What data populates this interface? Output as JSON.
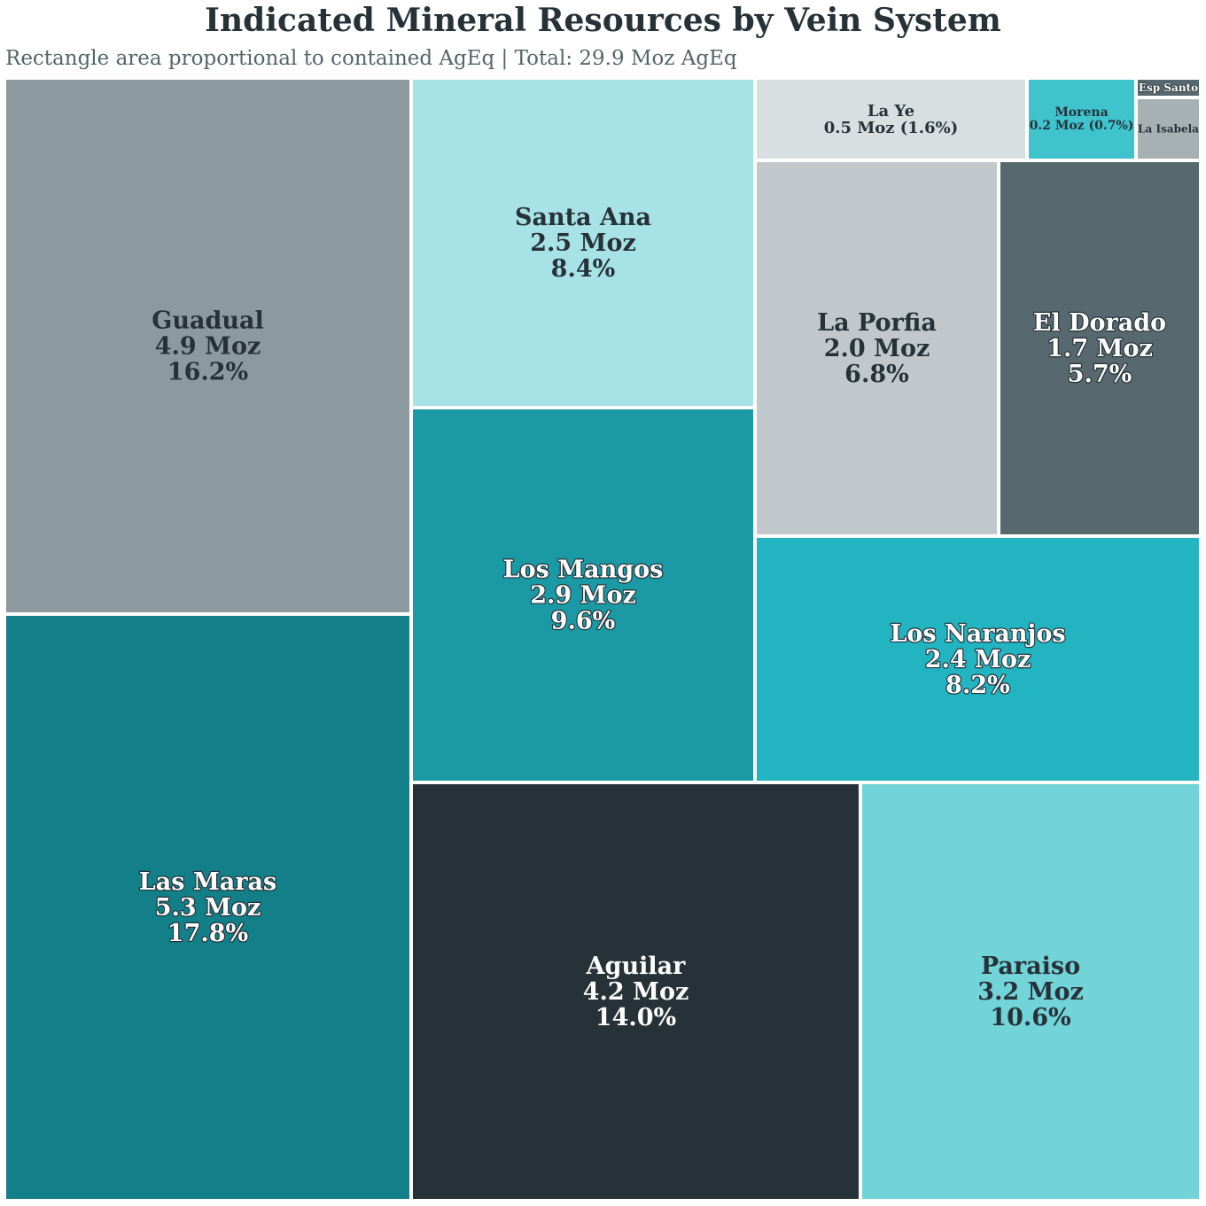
{
  "title": "Indicated Mineral Resources by Vein System",
  "subtitle": "Rectangle area proportional to contained AgEq | Total: 29.9 Moz AgEq",
  "chart_data": {
    "type": "treemap",
    "title": "Indicated Mineral Resources by Vein System",
    "subtitle": "Rectangle area proportional to contained AgEq | Total: 29.9 Moz AgEq",
    "unit": "Moz AgEq",
    "total": 29.9,
    "items": [
      {
        "name": "Las Maras",
        "value": 5.3,
        "percent": 17.8,
        "color": "#137f89",
        "text_color": "#ffffff",
        "label_lines": [
          "Las Maras",
          "5.3 Moz",
          "17.8%"
        ]
      },
      {
        "name": "Guadual",
        "value": 4.9,
        "percent": 16.2,
        "color": "#8c999e",
        "text_color": "#263238",
        "label_lines": [
          "Guadual",
          "4.9 Moz",
          "16.2%"
        ]
      },
      {
        "name": "Aguilar",
        "value": 4.2,
        "percent": 14.0,
        "color": "#263238",
        "text_color": "#ffffff",
        "label_lines": [
          "Aguilar",
          "4.2 Moz",
          "14.0%"
        ]
      },
      {
        "name": "Paraiso",
        "value": 3.2,
        "percent": 10.6,
        "color": "#72d3d9",
        "text_color": "#263238",
        "label_lines": [
          "Paraiso",
          "3.2 Moz",
          "10.6%"
        ]
      },
      {
        "name": "Los Mangos",
        "value": 2.9,
        "percent": 9.6,
        "color": "#1b9aa6",
        "text_color": "#ffffff",
        "label_lines": [
          "Los Mangos",
          "2.9 Moz",
          "9.6%"
        ]
      },
      {
        "name": "Santa Ana",
        "value": 2.5,
        "percent": 8.4,
        "color": "#a7e2e6",
        "text_color": "#263238",
        "label_lines": [
          "Santa Ana",
          "2.5 Moz",
          "8.4%"
        ]
      },
      {
        "name": "Los Naranjos",
        "value": 2.4,
        "percent": 8.2,
        "color": "#23b4c2",
        "text_color": "#ffffff",
        "label_lines": [
          "Los Naranjos",
          "2.4 Moz",
          "8.2%"
        ]
      },
      {
        "name": "La Porfia",
        "value": 2.0,
        "percent": 6.8,
        "color": "#c0c8cb",
        "text_color": "#263238",
        "label_lines": [
          "La Porfia",
          "2.0 Moz",
          "6.8%"
        ]
      },
      {
        "name": "El Dorado",
        "value": 1.7,
        "percent": 5.7,
        "color": "#57686f",
        "text_color": "#ffffff",
        "label_lines": [
          "El Dorado",
          "1.7 Moz",
          "5.7%"
        ]
      },
      {
        "name": "La Ye",
        "value": 0.5,
        "percent": 1.6,
        "color": "#d7dfe0",
        "text_color": "#263238",
        "label_lines": [
          "La Ye",
          "0.5 Moz (1.6%)"
        ]
      },
      {
        "name": "Morena",
        "value": 0.2,
        "percent": 0.7,
        "color": "#3fc3cd",
        "text_color": "#263238",
        "label_lines": [
          "Morena",
          "0.2 Moz (0.7%)"
        ]
      },
      {
        "name": "La Isabela",
        "value": null,
        "percent": null,
        "color": "#a7b1b4",
        "text_color": "#263238",
        "label_lines": [
          "La Isabela"
        ]
      },
      {
        "name": "Esp Santo",
        "value": null,
        "percent": null,
        "color": "#57686f",
        "text_color": "#ffffff",
        "label_lines": [
          "Esp Santo"
        ]
      }
    ]
  }
}
